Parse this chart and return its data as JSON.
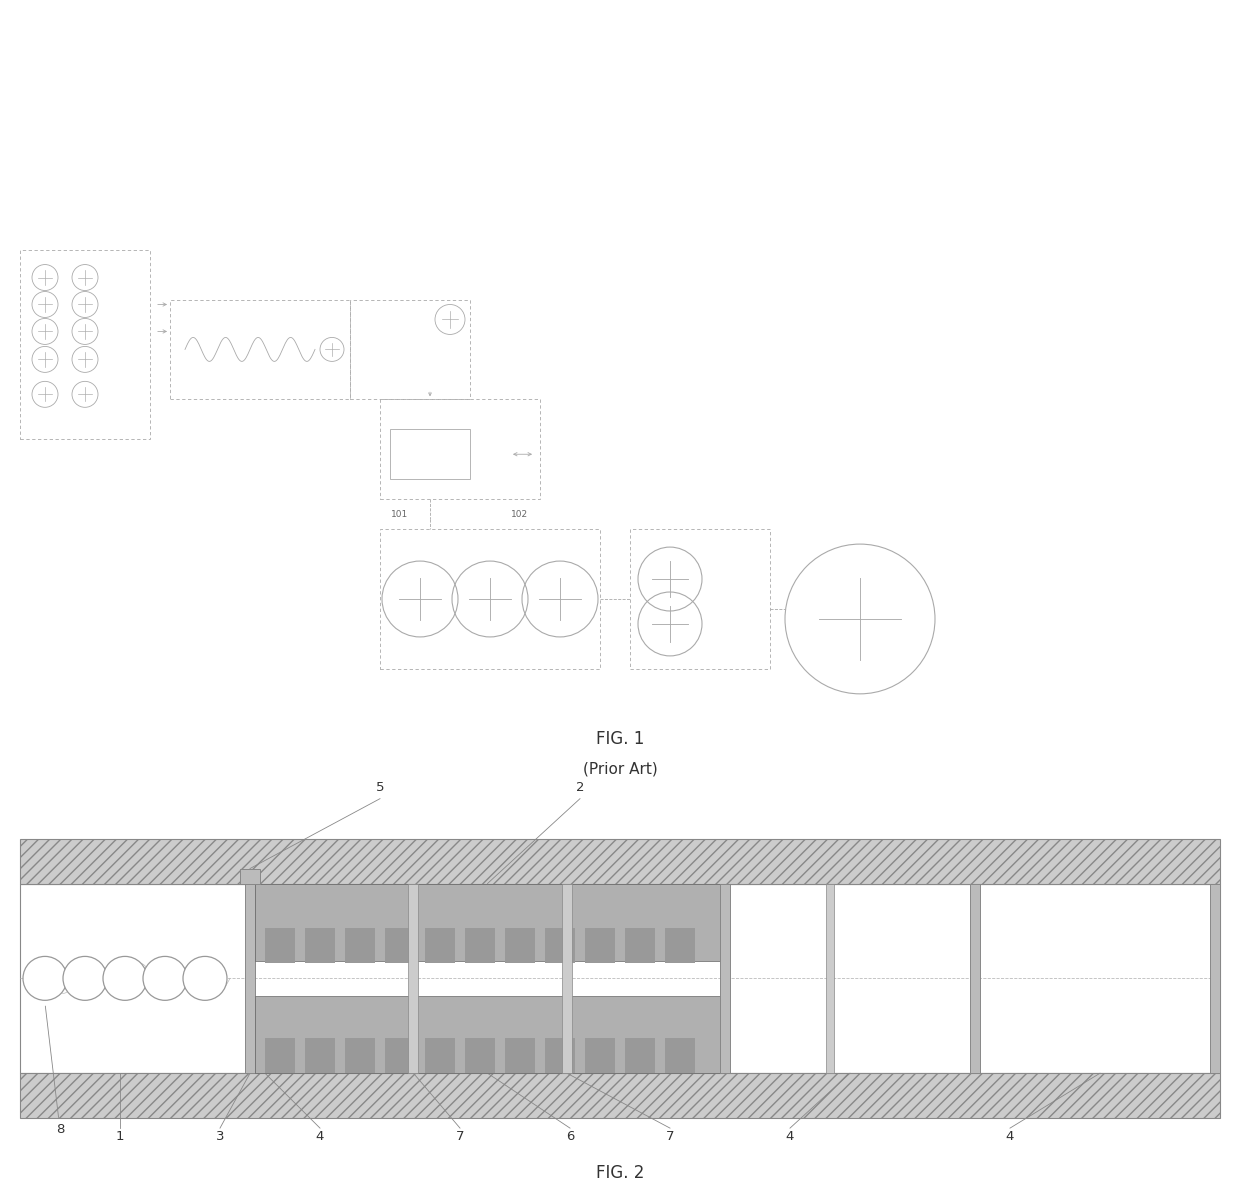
{
  "fig1_label": "FIG. 1",
  "fig1_sublabel": "(Prior Art)",
  "fig2_label": "FIG. 2",
  "background_color": "#ffffff",
  "line_color": "#aaaaaa",
  "dark_line": "#888888",
  "label_101": "101",
  "label_102": "102"
}
